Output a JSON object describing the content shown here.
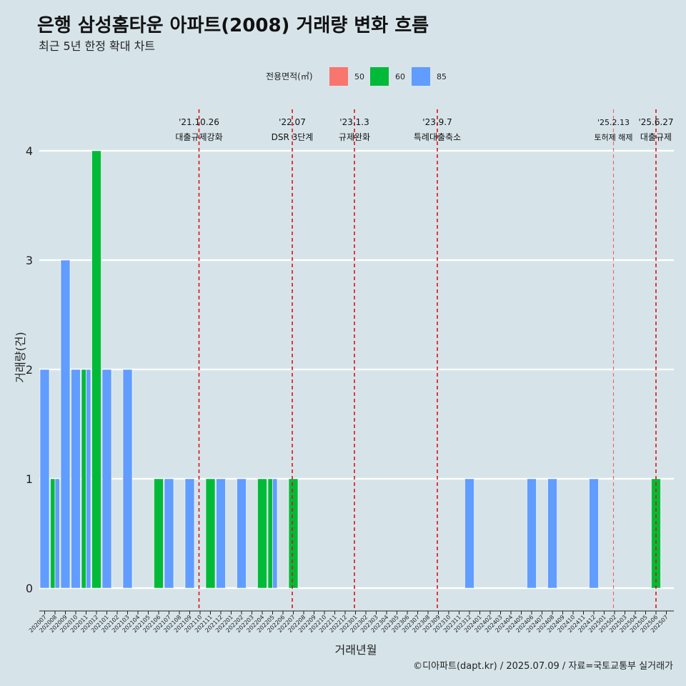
{
  "chart_data": {
    "type": "bar",
    "title": "은행 삼성홈타운 아파트(2008) 거래량 변화 흐름",
    "subtitle": "최근 5년 한정 확대 차트",
    "xlabel": "거래년월",
    "ylabel": "거래량(건)",
    "ylim": [
      0,
      4
    ],
    "y_ticks": [
      0,
      1,
      2,
      3,
      4
    ],
    "grid": true,
    "legend": {
      "title": "전용면적(㎡)",
      "position": "top"
    },
    "categories": [
      "202007",
      "202008",
      "202009",
      "202010",
      "202011",
      "202012",
      "202101",
      "202102",
      "202103",
      "202104",
      "202105",
      "202106",
      "202107",
      "202108",
      "202109",
      "202110",
      "202111",
      "202112",
      "202201",
      "202202",
      "202203",
      "202204",
      "202205",
      "202206",
      "202207",
      "202208",
      "202209",
      "202210",
      "202211",
      "202212",
      "202301",
      "202302",
      "202303",
      "202304",
      "202305",
      "202306",
      "202307",
      "202308",
      "202309",
      "202310",
      "202311",
      "202312",
      "202401",
      "202402",
      "202403",
      "202404",
      "202405",
      "202406",
      "202407",
      "202408",
      "202409",
      "202410",
      "202411",
      "202412",
      "202501",
      "202502",
      "202503",
      "202504",
      "202505",
      "202506",
      "202507"
    ],
    "series": [
      {
        "name": "50",
        "color": "#f8766d",
        "values": {}
      },
      {
        "name": "60",
        "color": "#00ba38",
        "values": {
          "202008": 1,
          "202011": 2,
          "202012": 4,
          "202106": 1,
          "202111": 1,
          "202204": 1,
          "202205": 1,
          "202207": 1,
          "202506": 1
        }
      },
      {
        "name": "85",
        "color": "#619cff",
        "values": {
          "202007": 2,
          "202008": 1,
          "202009": 3,
          "202010": 2,
          "202011": 2,
          "202101": 2,
          "202103": 2,
          "202107": 1,
          "202109": 1,
          "202112": 1,
          "202202": 1,
          "202205": 1,
          "202312": 1,
          "202406": 1,
          "202408": 1,
          "202412": 1
        }
      }
    ],
    "events": [
      {
        "date_line1": "'21.10.26",
        "date_line2": "대출규제강화",
        "month": "202110",
        "style": "bold"
      },
      {
        "date_line1": "'22.07",
        "date_line2": "DSR 3단계",
        "month": "202207",
        "style": "bold"
      },
      {
        "date_line1": "'23.1.3",
        "date_line2": "규제완화",
        "month": "202301",
        "style": "bold"
      },
      {
        "date_line1": "'23.9.7",
        "date_line2": "특례대출축소",
        "month": "202309",
        "style": "bold"
      },
      {
        "date_line1": "'25.2.13",
        "date_line2": "토허제 해제",
        "month": "202502",
        "style": "light"
      },
      {
        "date_line1": "'25.6.27",
        "date_line2": "대출규제",
        "month": "202506",
        "style": "bold"
      }
    ]
  },
  "caption": "©디아파트(dapt.kr) / 2025.07.09 / 자료=국토교통부 실거래가"
}
